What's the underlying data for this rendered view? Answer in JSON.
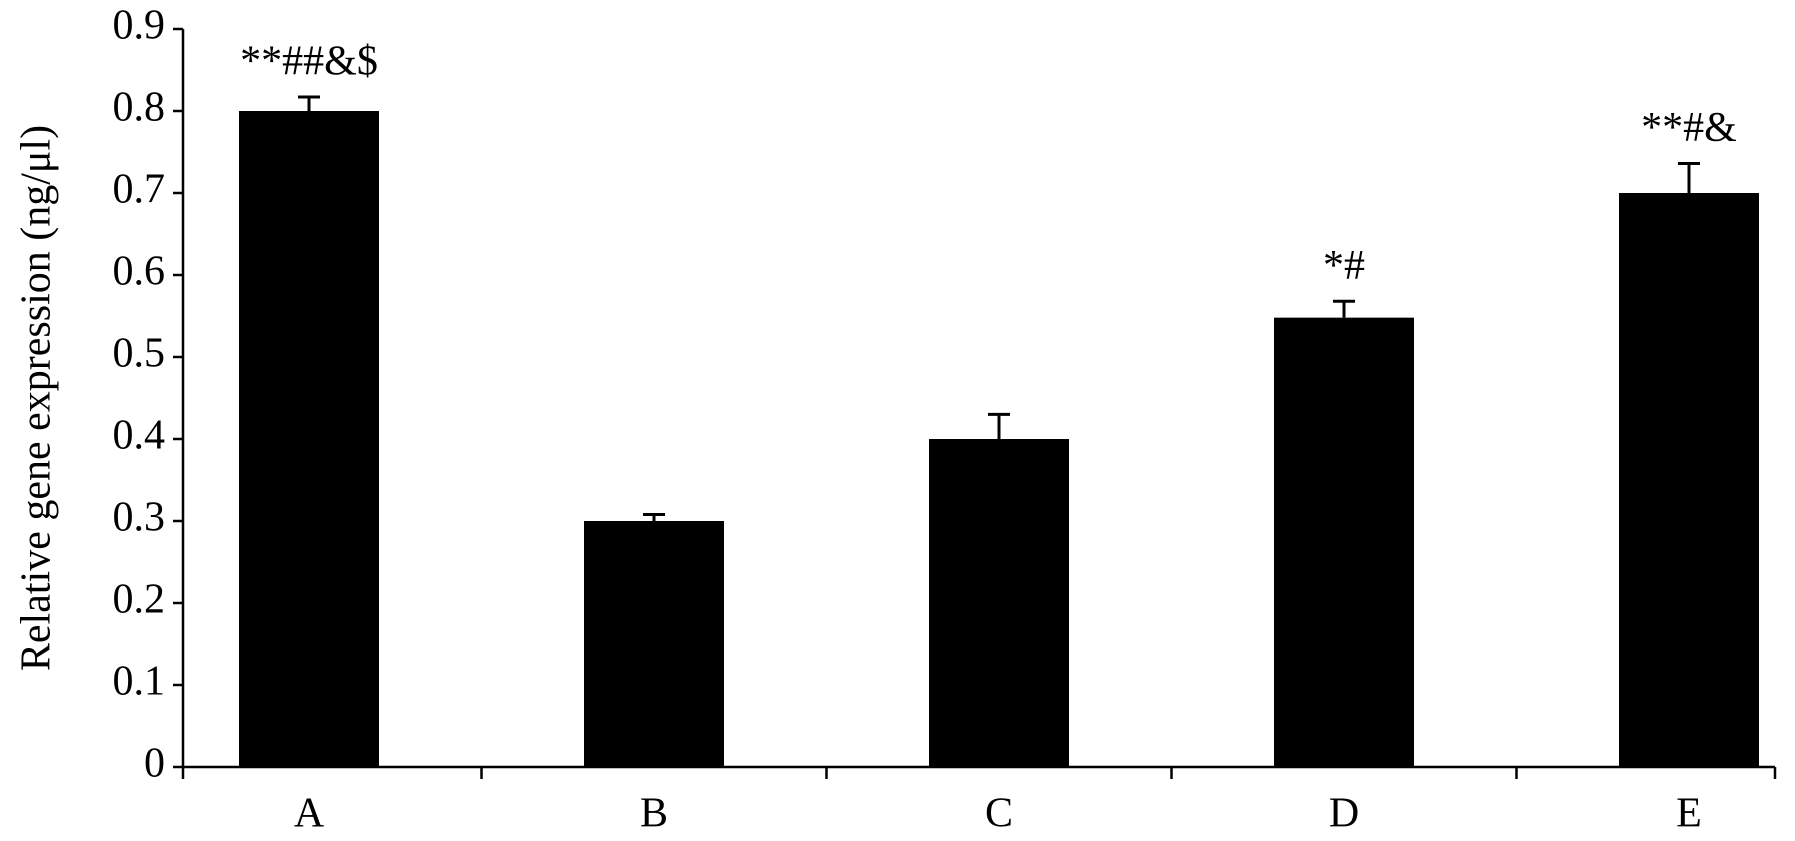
{
  "chart_data": {
    "type": "bar",
    "y_label": "Relative gene expression (ng/μl)",
    "categories": [
      "A",
      "B",
      "C",
      "D",
      "E"
    ],
    "values": [
      0.8,
      0.3,
      0.4,
      0.548,
      0.7
    ],
    "errors": [
      0.017,
      0.008,
      0.03,
      0.02,
      0.036
    ],
    "color": "#000000",
    "ylim": [
      0,
      0.9
    ],
    "yticks": [
      0,
      0.1,
      0.2,
      0.3,
      0.4,
      0.5,
      0.6,
      0.7,
      0.8,
      0.9
    ],
    "annotations": [
      {
        "category": "A",
        "text": "**##&$"
      },
      {
        "category": "D",
        "text": "*#"
      },
      {
        "category": "E",
        "text": "**#&"
      }
    ],
    "grid": false
  }
}
